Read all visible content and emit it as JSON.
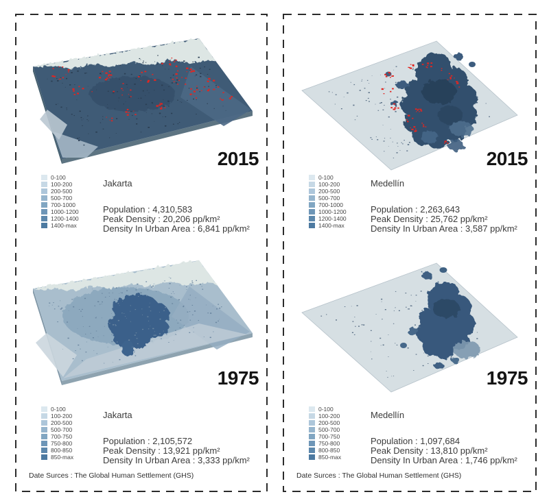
{
  "source_note": "Date Surces : The Global Human Settlement (GHS)",
  "legend_2015": {
    "ranges": [
      "0-100",
      "100-200",
      "200-500",
      "500-700",
      "700-1000",
      "1000-1200",
      "1200-1400",
      "1400-max"
    ],
    "colors": [
      "#dce8ef",
      "#c6d8e5",
      "#adc6da",
      "#96b5cd",
      "#81a6c2",
      "#6e96b7",
      "#5d88ac",
      "#4d7aa1"
    ]
  },
  "legend_1975": {
    "ranges": [
      "0-100",
      "100-200",
      "200-500",
      "500-700",
      "700-750",
      "750-800",
      "800-850",
      "850-max"
    ],
    "colors": [
      "#dce8ef",
      "#c6d8e5",
      "#adc6da",
      "#96b5cd",
      "#81a6c2",
      "#6e96b7",
      "#5d88ac",
      "#4d7aa1"
    ]
  },
  "panels": {
    "jakarta_2015": {
      "year": "2015",
      "city": "Jakarta",
      "population": "Population : 4,310,583",
      "peak_density": "Peak Density : 20,206 pp/km²",
      "urban_density": "Density In Urban Area : 6,841 pp/km²"
    },
    "jakarta_1975": {
      "year": "1975",
      "city": "Jakarta",
      "population": "Population : 2,105,572",
      "peak_density": "Peak Density : 13,921 pp/km²",
      "urban_density": "Density In Urban Area : 3,333 pp/km²"
    },
    "medellin_2015": {
      "year": "2015",
      "city": "Medellín",
      "population": "Population : 2,263,643",
      "peak_density": "Peak Density : 25,762 pp/km²",
      "urban_density": "Density In Urban Area : 3,587 pp/km²"
    },
    "medellin_1975": {
      "year": "1975",
      "city": "Medellín",
      "population": "Population : 1,097,684",
      "peak_density": "Peak Density : 13,810 pp/km²",
      "urban_density": "Density In Urban Area : 1,746 pp/km²"
    }
  },
  "map_colors": {
    "red_new_growth": "#e22621",
    "water": "#dde6e4",
    "jakarta_2015_base": "#3f5b76",
    "jakarta_1975_base": "#a9becd",
    "plane_low_density": "#d6dfe3",
    "high_density_cluster_2015": "#32506d",
    "high_density_cluster_1975": "#37597c",
    "jakarta_1975_cluster": "#3a608a"
  }
}
